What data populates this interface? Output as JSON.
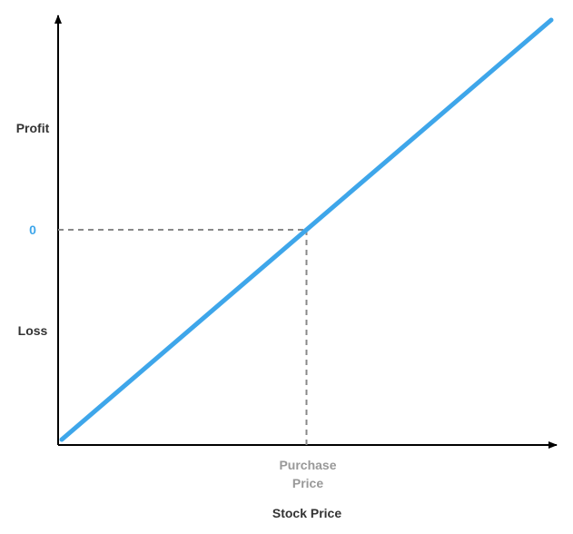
{
  "chart_data": {
    "type": "line",
    "title": "",
    "xlabel": "Stock Price",
    "ylabel": "",
    "x_tick_label_lines": [
      "Purchase",
      "Price"
    ],
    "y_tick_labels": {
      "profit": "Profit",
      "zero": "0",
      "loss": "Loss"
    },
    "series": [
      {
        "values": [
          {
            "x": 0,
            "y": -1
          },
          {
            "x": 2,
            "y": 1
          }
        ]
      }
    ],
    "reference": {
      "x": 1,
      "y": 0
    },
    "xlim": [
      0,
      2
    ],
    "ylim": [
      -1,
      1
    ],
    "grid": false,
    "legend": "none"
  },
  "colors": {
    "line": "#3ea6ea",
    "zero_label": "#3ea6ea",
    "axis": "#000000",
    "reference_line": "#888888",
    "text": "#333333",
    "muted_text": "#999999"
  }
}
